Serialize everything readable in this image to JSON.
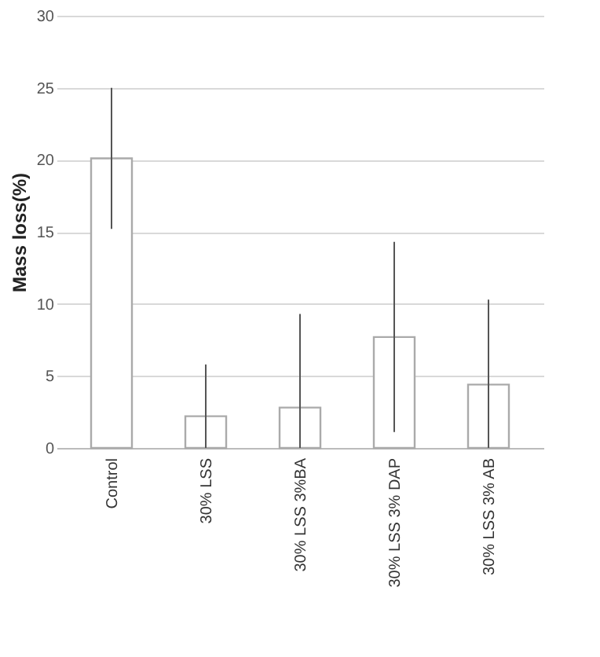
{
  "chart_data": {
    "type": "bar",
    "ylabel": "Mass loss(%)",
    "categories": [
      "Control",
      "30% LSS",
      "30% LSS 3%BA",
      "30% LSS 3% DAP",
      "30% LSS 3% AB"
    ],
    "values": [
      20.1,
      2.2,
      2.8,
      7.7,
      4.4
    ],
    "errors": [
      [
        15.2,
        25.0
      ],
      [
        0,
        5.8
      ],
      [
        0,
        9.3
      ],
      [
        1.1,
        14.3
      ],
      [
        0,
        10.3
      ]
    ],
    "color": "#ffffff",
    "ylim": [
      0,
      30
    ],
    "yticks": [
      0,
      5,
      10,
      15,
      20,
      25,
      30
    ],
    "grid": "y"
  }
}
